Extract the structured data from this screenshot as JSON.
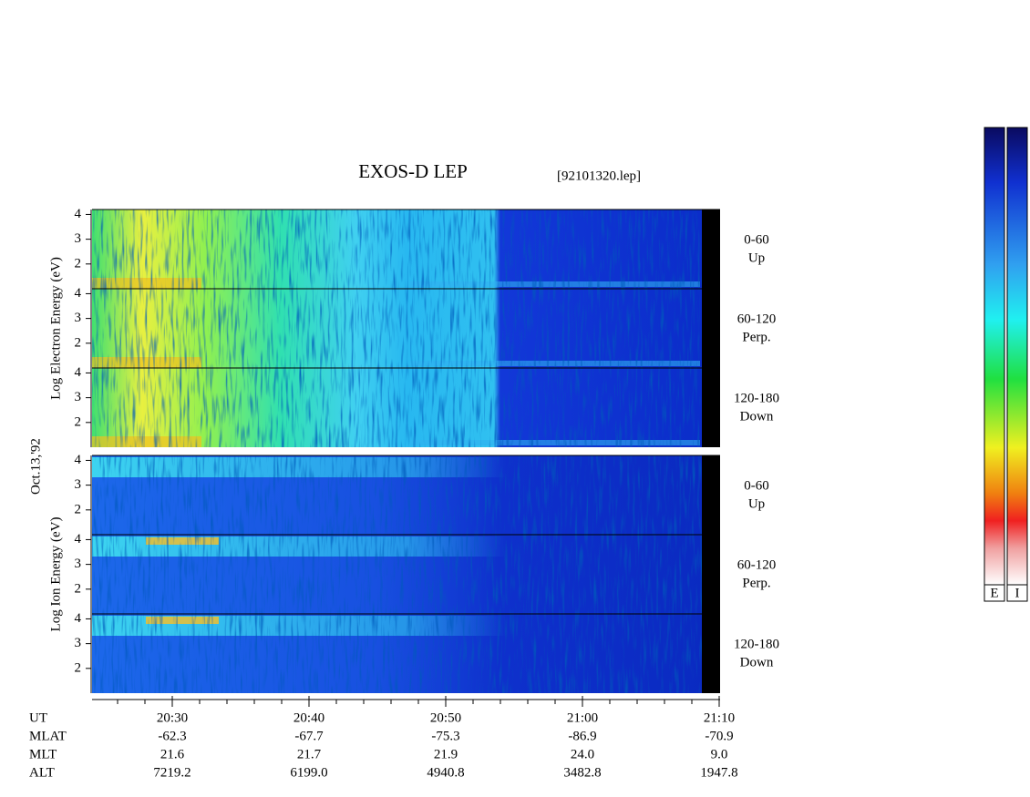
{
  "header": {
    "title": "EXOS-D LEP",
    "file": "[92101320.lep]"
  },
  "date": "Oct.13,'92",
  "energy_axis": {
    "ylim": [
      1,
      4.2
    ],
    "yticks": [
      2,
      3,
      4
    ]
  },
  "groups": [
    {
      "label": "Log Electron Energy (eV)",
      "panels": [
        {
          "angle": "0-60",
          "direction": "Up"
        },
        {
          "angle": "60-120",
          "direction": "Perp."
        },
        {
          "angle": "120-180",
          "direction": "Down"
        }
      ]
    },
    {
      "label": "Log Ion Energy (eV)",
      "panels": [
        {
          "angle": "0-60",
          "direction": "Up"
        },
        {
          "angle": "60-120",
          "direction": "Perp."
        },
        {
          "angle": "120-180",
          "direction": "Down"
        }
      ]
    }
  ],
  "ephemeris": [
    {
      "label": "UT",
      "values": [
        "20:30",
        "20:40",
        "20:50",
        "21:00",
        "21:10"
      ]
    },
    {
      "label": "MLAT",
      "values": [
        "-62.3",
        "-67.7",
        "-75.3",
        "-86.9",
        "-70.9"
      ]
    },
    {
      "label": "MLT",
      "values": [
        "21.6",
        "21.7",
        "21.9",
        "24.0",
        "9.0"
      ]
    },
    {
      "label": "ALT",
      "values": [
        "7219.2",
        "6199.0",
        "4940.8",
        "3482.8",
        "1947.8"
      ]
    }
  ],
  "colorbars": [
    "E",
    "I"
  ]
}
